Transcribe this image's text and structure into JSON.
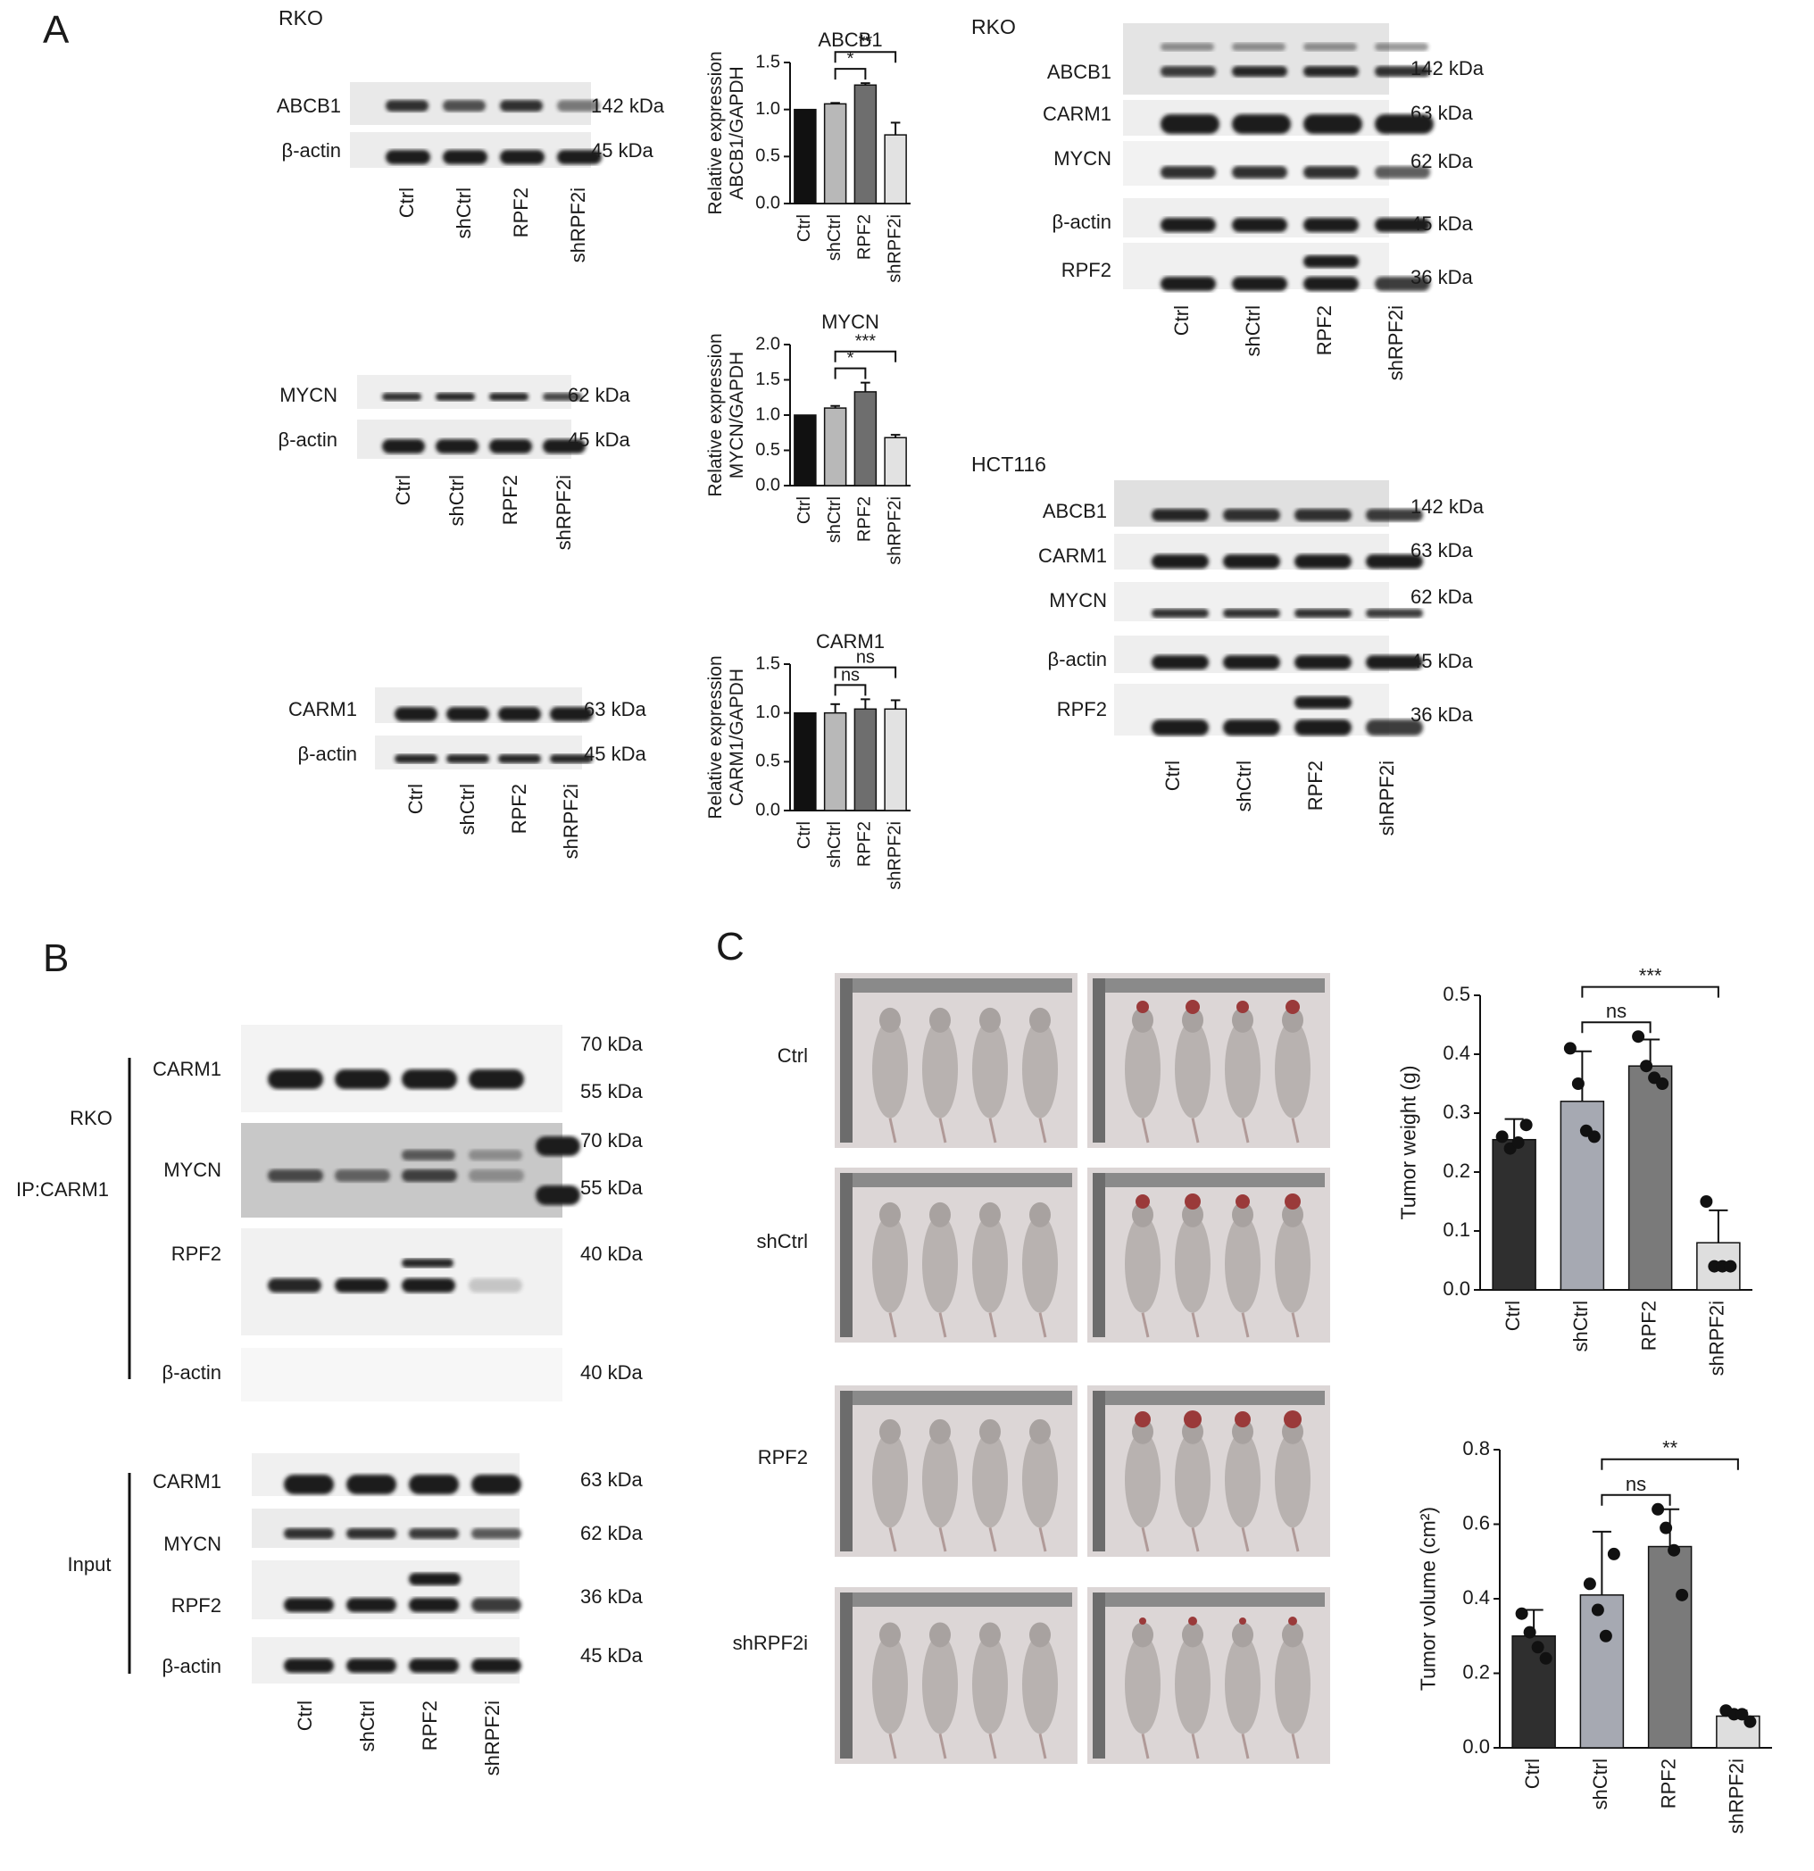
{
  "panel_letters": {
    "a": "A",
    "b": "B",
    "c": "C"
  },
  "groups": [
    "Ctrl",
    "shCtrl",
    "RPF2",
    "shRPF2i"
  ],
  "beta_actin": "β-actin",
  "panelA": {
    "cell_label": "RKO",
    "blots": [
      {
        "target": "ABCB1",
        "target_kda": "142 kDa",
        "actin_kda": "45 kDa"
      },
      {
        "target": "MYCN",
        "target_kda": "62 kDa",
        "actin_kda": "45 kDa"
      },
      {
        "target": "CARM1",
        "target_kda": "63 kDa",
        "actin_kda": "45 kDa"
      }
    ],
    "right_blots": [
      {
        "cell": "RKO",
        "rows": [
          {
            "label": "ABCB1",
            "kda": "142 kDa"
          },
          {
            "label": "CARM1",
            "kda": "63 kDa"
          },
          {
            "label": "MYCN",
            "kda": "62 kDa"
          },
          {
            "label": "β-actin",
            "kda": "45 kDa"
          },
          {
            "label": "RPF2",
            "kda": "36 kDa"
          }
        ]
      },
      {
        "cell": "HCT116",
        "rows": [
          {
            "label": "ABCB1",
            "kda": "142 kDa"
          },
          {
            "label": "CARM1",
            "kda": "63 kDa"
          },
          {
            "label": "MYCN",
            "kda": "62 kDa"
          },
          {
            "label": "β-actin",
            "kda": "45 kDa"
          },
          {
            "label": "RPF2",
            "kda": "36 kDa"
          }
        ]
      }
    ]
  },
  "panelB": {
    "rko": "RKO",
    "ip": "IP:CARM1",
    "input": "Input",
    "ip_rows": [
      {
        "label": "CARM1",
        "kda": [
          "70 kDa",
          "55 kDa"
        ]
      },
      {
        "label": "MYCN",
        "kda": [
          "70 kDa",
          "55 kDa"
        ]
      },
      {
        "label": "RPF2",
        "kda": [
          "40 kDa"
        ]
      },
      {
        "label": "β-actin",
        "kda": [
          "40 kDa"
        ]
      }
    ],
    "input_rows": [
      {
        "label": "CARM1",
        "kda": "63 kDa"
      },
      {
        "label": "MYCN",
        "kda": "62 kDa"
      },
      {
        "label": "RPF2",
        "kda": "36 kDa"
      },
      {
        "label": "β-actin",
        "kda": "45 kDa"
      }
    ]
  },
  "panelC": {
    "row_labels": [
      "Ctrl",
      "shCtrl",
      "RPF2",
      "shRPF2i"
    ]
  },
  "chart_data": [
    {
      "type": "bar",
      "title": "ABCB1",
      "ylabel": "Relative expression ABCB1/GAPDH",
      "categories": [
        "Ctrl",
        "shCtrl",
        "RPF2",
        "shRPF2i"
      ],
      "values": [
        1.0,
        1.06,
        1.26,
        0.73
      ],
      "errors": [
        0,
        0.01,
        0.02,
        0.13
      ],
      "ylim": [
        0,
        1.5
      ],
      "ticks": [
        "0.0",
        "0.5",
        "1.0",
        "1.5"
      ],
      "significance": [
        {
          "from": "shCtrl",
          "to": "RPF2",
          "label": "*"
        },
        {
          "from": "shCtrl",
          "to": "shRPF2i",
          "label": "**"
        }
      ],
      "colors": [
        "#111111",
        "#b8b8b8",
        "#6e6e6e",
        "#e2e2e2"
      ]
    },
    {
      "type": "bar",
      "title": "MYCN",
      "ylabel": "Relative expression MYCN/GAPDH",
      "categories": [
        "Ctrl",
        "shCtrl",
        "RPF2",
        "shRPF2i"
      ],
      "values": [
        1.0,
        1.1,
        1.33,
        0.68
      ],
      "errors": [
        0,
        0.03,
        0.13,
        0.04
      ],
      "ylim": [
        0,
        2.0
      ],
      "ticks": [
        "0.0",
        "0.5",
        "1.0",
        "1.5",
        "2.0"
      ],
      "significance": [
        {
          "from": "shCtrl",
          "to": "RPF2",
          "label": "*"
        },
        {
          "from": "shCtrl",
          "to": "shRPF2i",
          "label": "***"
        }
      ],
      "colors": [
        "#111111",
        "#b8b8b8",
        "#6e6e6e",
        "#e2e2e2"
      ]
    },
    {
      "type": "bar",
      "title": "CARM1",
      "ylabel": "Relative expression CARM1/GAPDH",
      "categories": [
        "Ctrl",
        "shCtrl",
        "RPF2",
        "shRPF2i"
      ],
      "values": [
        1.0,
        1.0,
        1.04,
        1.04
      ],
      "errors": [
        0,
        0.09,
        0.1,
        0.09
      ],
      "ylim": [
        0,
        1.5
      ],
      "ticks": [
        "0.0",
        "0.5",
        "1.0",
        "1.5"
      ],
      "significance": [
        {
          "from": "shCtrl",
          "to": "RPF2",
          "label": "ns"
        },
        {
          "from": "shCtrl",
          "to": "shRPF2i",
          "label": "ns"
        }
      ],
      "colors": [
        "#111111",
        "#b8b8b8",
        "#6e6e6e",
        "#e2e2e2"
      ]
    },
    {
      "type": "bar",
      "title": "",
      "ylabel": "Tumor weight (g)",
      "categories": [
        "Ctrl",
        "shCtrl",
        "RPF2",
        "shRPF2i"
      ],
      "values": [
        0.255,
        0.32,
        0.38,
        0.08
      ],
      "errors": [
        0.035,
        0.085,
        0.045,
        0.055
      ],
      "points": [
        [
          0.26,
          0.24,
          0.25,
          0.28
        ],
        [
          0.41,
          0.35,
          0.27,
          0.26
        ],
        [
          0.43,
          0.38,
          0.36,
          0.35
        ],
        [
          0.15,
          0.04,
          0.04,
          0.04
        ]
      ],
      "ylim": [
        0,
        0.5
      ],
      "ticks": [
        "0.0",
        "0.1",
        "0.2",
        "0.3",
        "0.4",
        "0.5"
      ],
      "significance": [
        {
          "from": "shCtrl",
          "to": "RPF2",
          "label": "ns"
        },
        {
          "from": "shCtrl",
          "to": "shRPF2i",
          "label": "***"
        }
      ],
      "colors": [
        "#2f2f2f",
        "#a6a9b2",
        "#7a7a7a",
        "#dedede"
      ]
    },
    {
      "type": "bar",
      "title": "",
      "ylabel": "Tumor volume (cm²)",
      "categories": [
        "Ctrl",
        "shCtrl",
        "RPF2",
        "shRPF2i"
      ],
      "values": [
        0.3,
        0.41,
        0.54,
        0.085
      ],
      "errors": [
        0.07,
        0.17,
        0.1,
        0.015
      ],
      "points": [
        [
          0.36,
          0.31,
          0.27,
          0.24
        ],
        [
          0.44,
          0.37,
          0.3,
          0.52
        ],
        [
          0.64,
          0.59,
          0.53,
          0.41
        ],
        [
          0.1,
          0.09,
          0.09,
          0.07
        ]
      ],
      "ylim": [
        0,
        0.8
      ],
      "ticks": [
        "0.0",
        "0.2",
        "0.4",
        "0.6",
        "0.8"
      ],
      "significance": [
        {
          "from": "shCtrl",
          "to": "RPF2",
          "label": "ns"
        },
        {
          "from": "shCtrl",
          "to": "shRPF2i",
          "label": "**"
        }
      ],
      "colors": [
        "#2f2f2f",
        "#a6a9b2",
        "#7a7a7a",
        "#dedede"
      ]
    }
  ]
}
